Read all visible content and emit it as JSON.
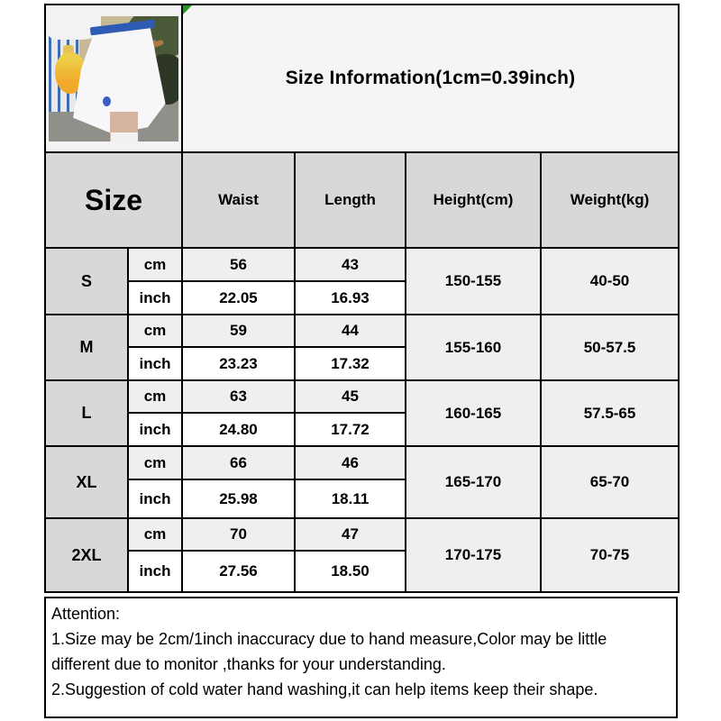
{
  "title": "Size Information(1cm=0.39inch)",
  "photo": {
    "description": "model wearing a white skirt with blue waistband, holding a yellow juice bag"
  },
  "table": {
    "headers": {
      "size": "Size",
      "waist": "Waist",
      "length": "Length",
      "height": "Height(cm)",
      "weight": "Weight(kg)"
    },
    "unit_labels": {
      "cm": "cm",
      "inch": "inch"
    },
    "rows": [
      {
        "size": "S",
        "cm_values": [
          "56",
          "43"
        ],
        "inch_values": [
          "22.05",
          "16.93"
        ],
        "height": "150-155",
        "weight": "40-50"
      },
      {
        "size": "M",
        "cm_values": [
          "59",
          "44"
        ],
        "inch_values": [
          "23.23",
          "17.32"
        ],
        "height": "155-160",
        "weight": "50-57.5"
      },
      {
        "size": "L",
        "cm_values": [
          "63",
          "45"
        ],
        "inch_values": [
          "24.80",
          "17.72"
        ],
        "height": "160-165",
        "weight": "57.5-65"
      },
      {
        "size": "XL",
        "cm_values": [
          "66",
          "46"
        ],
        "inch_values": [
          "25.98",
          "18.11"
        ],
        "height": "165-170",
        "weight": "65-70"
      },
      {
        "size": "2XL",
        "cm_values": [
          "70",
          "47"
        ],
        "inch_values": [
          "27.56",
          "18.50"
        ],
        "height": "170-175",
        "weight": "70-75"
      }
    ]
  },
  "attention": {
    "heading": "Attention:",
    "lines": [
      "1.Size may be 2cm/1inch inaccuracy due to hand measure,Color may be little",
      "different due to monitor ,thanks for your understanding.",
      "2.Suggestion of cold water hand washing,it can help items keep their shape."
    ]
  },
  "colors": {
    "header_gray": "#d8d8d8",
    "light_gray": "#efefef",
    "title_gray": "#f5f5f5",
    "waistband_blue": "#2e5cb5",
    "corner_flag_green": "#1d9b21",
    "border_black": "#000000"
  }
}
